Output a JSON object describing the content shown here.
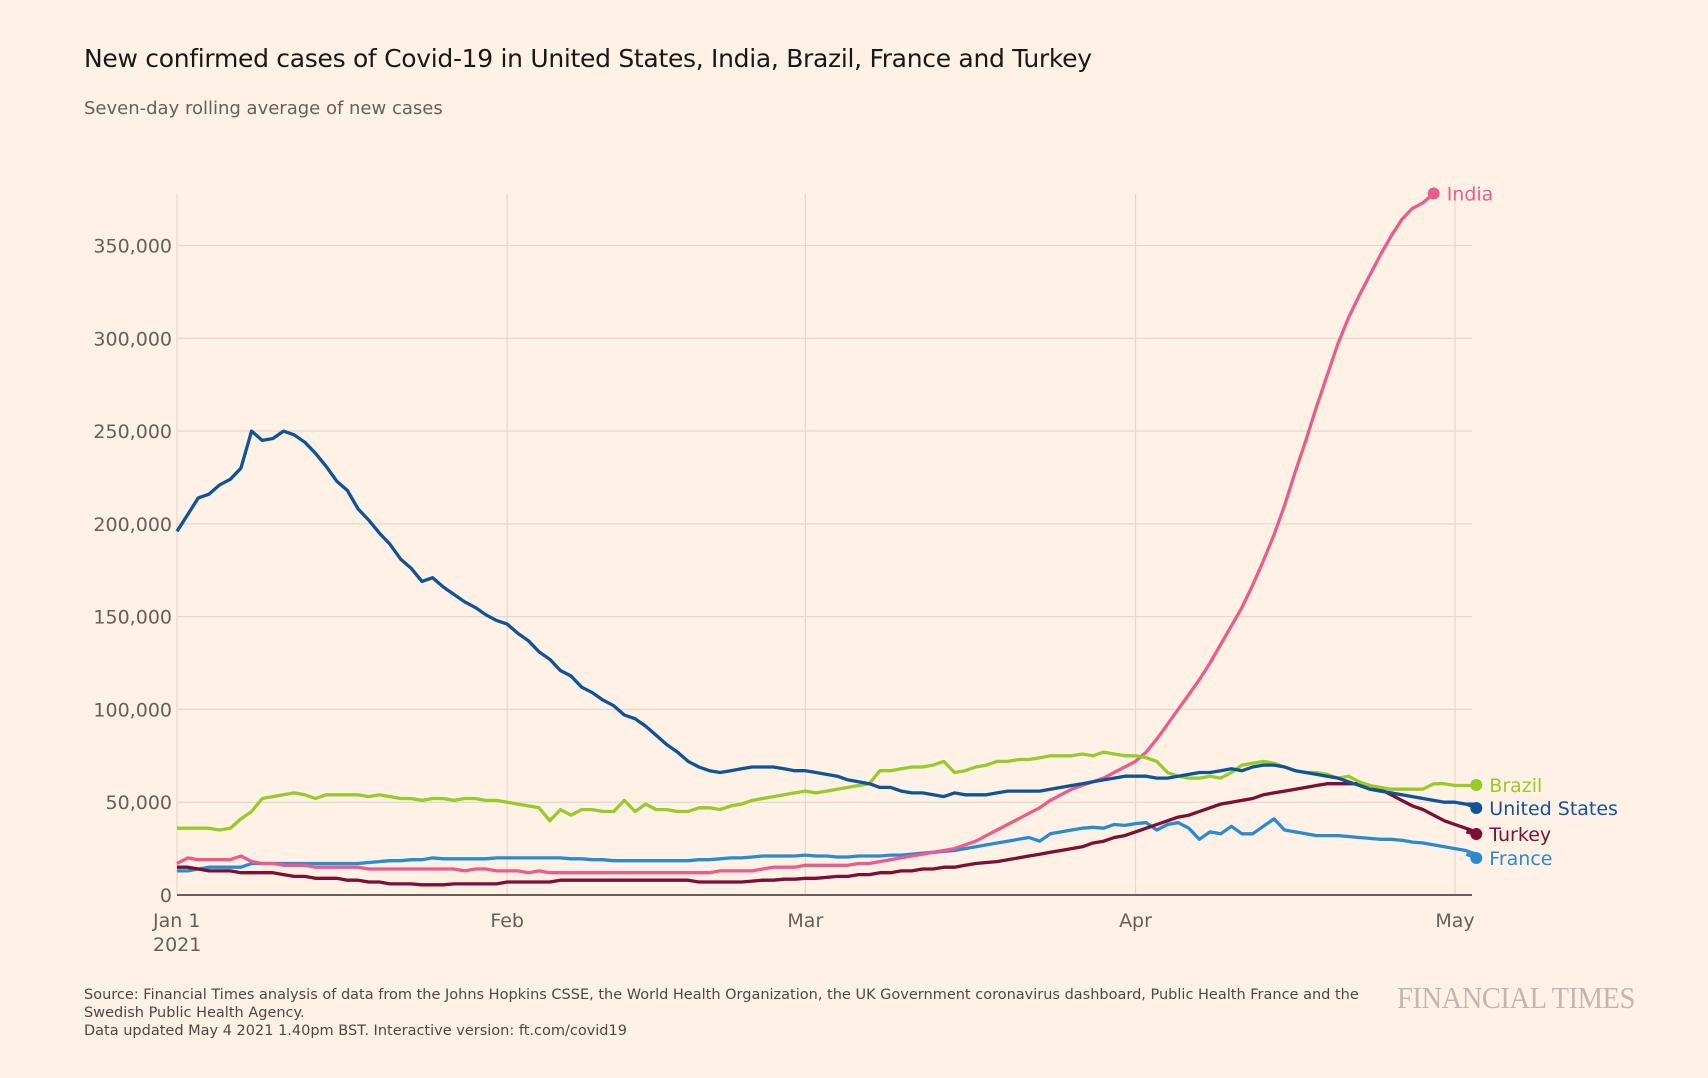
{
  "header": {
    "title": "New confirmed cases of Covid-19 in United States, India, Brazil, France and Turkey",
    "subtitle": "Seven-day rolling average of new cases"
  },
  "footer": {
    "source_line1": "Source: Financial Times analysis of data from the Johns Hopkins CSSE, the World Health Organization, the UK Government coronavirus dashboard, Public Health France and the",
    "source_line2": "Swedish Public Health Agency.",
    "updated": "Data updated May 4 2021 1.40pm BST. Interactive version: ft.com/covid19",
    "logo": "FINANCIAL TIMES"
  },
  "chart_data": {
    "type": "line",
    "title": "New confirmed cases of Covid-19 in United States, India, Brazil, France and Turkey",
    "subtitle": "Seven-day rolling average of new cases",
    "xlabel": "",
    "ylabel": "",
    "x_start": "2021-01-01",
    "x_unit": "days since Jan 1 2021",
    "xlim": [
      0,
      122
    ],
    "ylim": [
      0,
      375000
    ],
    "grid": true,
    "legend": "right (labels at line ends)",
    "x_ticks": [
      {
        "day": 0,
        "label": "Jan 1",
        "sublabel": "2021"
      },
      {
        "day": 31,
        "label": "Feb",
        "sublabel": ""
      },
      {
        "day": 59,
        "label": "Mar",
        "sublabel": ""
      },
      {
        "day": 90,
        "label": "Apr",
        "sublabel": ""
      },
      {
        "day": 120,
        "label": "May",
        "sublabel": ""
      }
    ],
    "y_ticks": [
      {
        "value": 0,
        "label": "0"
      },
      {
        "value": 50000,
        "label": "50,000"
      },
      {
        "value": 100000,
        "label": "100,000"
      },
      {
        "value": 150000,
        "label": "150,000"
      },
      {
        "value": 200000,
        "label": "200,000"
      },
      {
        "value": 250000,
        "label": "250,000"
      },
      {
        "value": 300000,
        "label": "300,000"
      },
      {
        "value": 350000,
        "label": "350,000"
      }
    ],
    "series": [
      {
        "name": "United States",
        "color": "#0f5499",
        "values": [
          196000,
          205000,
          214000,
          216000,
          221000,
          224000,
          230000,
          250000,
          245000,
          246000,
          250000,
          248000,
          244000,
          238000,
          231000,
          223000,
          218000,
          208000,
          202000,
          195000,
          189000,
          181000,
          176000,
          169000,
          171000,
          166000,
          162000,
          158000,
          155000,
          151000,
          148000,
          146000,
          141000,
          137000,
          131000,
          127000,
          121000,
          118000,
          112000,
          109000,
          105000,
          102000,
          97000,
          95000,
          91000,
          86000,
          81000,
          77000,
          72000,
          69000,
          67000,
          66000,
          67000,
          68000,
          69000,
          69000,
          69000,
          68000,
          67000,
          67000,
          66000,
          65000,
          64000,
          62000,
          61000,
          60000,
          58000,
          58000,
          56000,
          55000,
          55000,
          54000,
          53000,
          55000,
          54000,
          54000,
          54000,
          55000,
          56000,
          56000,
          56000,
          56000,
          57000,
          58000,
          59000,
          60000,
          61000,
          62000,
          63000,
          64000,
          64000,
          64000,
          63000,
          63000,
          64000,
          65000,
          66000,
          66000,
          67000,
          68000,
          67000,
          69000,
          70000,
          70000,
          69000,
          67000,
          66000,
          65000,
          64000,
          63000,
          61000,
          59000,
          57000,
          56000,
          55000,
          54000,
          53000,
          52000,
          51000,
          50000,
          50000,
          49000,
          49000
        ]
      },
      {
        "name": "India",
        "color": "#e95d8c",
        "values": [
          17000,
          20000,
          19000,
          19000,
          19000,
          19000,
          21000,
          18000,
          17000,
          17000,
          16000,
          16000,
          16000,
          15000,
          15000,
          15000,
          15000,
          15000,
          14000,
          14000,
          14000,
          14000,
          14000,
          14000,
          14000,
          14000,
          14000,
          13000,
          14000,
          14000,
          13000,
          13000,
          13000,
          12000,
          13000,
          12000,
          12000,
          12000,
          12000,
          12000,
          12000,
          12000,
          12000,
          12000,
          12000,
          12000,
          12000,
          12000,
          12000,
          12000,
          12000,
          13000,
          13000,
          13000,
          13000,
          14000,
          15000,
          15000,
          15000,
          16000,
          16000,
          16000,
          16000,
          16000,
          17000,
          17000,
          18000,
          19000,
          20000,
          21000,
          22000,
          23000,
          24000,
          25000,
          27000,
          29000,
          32000,
          35000,
          38000,
          41000,
          44000,
          47000,
          51000,
          54000,
          57000,
          59000,
          61000,
          63000,
          66000,
          69000,
          72000,
          77000,
          84000,
          92000,
          100000,
          108000,
          116000,
          125000,
          135000,
          145000,
          155000,
          167000,
          180000,
          194000,
          210000,
          228000,
          245000,
          263000,
          280000,
          297000,
          311000,
          323000,
          334000,
          345000,
          355000,
          364000,
          370000,
          373000,
          378000
        ]
      },
      {
        "name": "Brazil",
        "color": "#96cc28",
        "values": [
          36000,
          36000,
          36000,
          36000,
          35000,
          36000,
          41000,
          45000,
          52000,
          53000,
          54000,
          55000,
          54000,
          52000,
          54000,
          54000,
          54000,
          54000,
          53000,
          54000,
          53000,
          52000,
          52000,
          51000,
          52000,
          52000,
          51000,
          52000,
          52000,
          51000,
          51000,
          50000,
          49000,
          48000,
          47000,
          40000,
          46000,
          43000,
          46000,
          46000,
          45000,
          45000,
          51000,
          45000,
          49000,
          46000,
          46000,
          45000,
          45000,
          47000,
          47000,
          46000,
          48000,
          49000,
          51000,
          52000,
          53000,
          54000,
          55000,
          56000,
          55000,
          56000,
          57000,
          58000,
          59000,
          60000,
          67000,
          67000,
          68000,
          69000,
          69000,
          70000,
          72000,
          66000,
          67000,
          69000,
          70000,
          72000,
          72000,
          73000,
          73000,
          74000,
          75000,
          75000,
          75000,
          76000,
          75000,
          77000,
          76000,
          75000,
          75000,
          74000,
          72000,
          66000,
          64000,
          63000,
          63000,
          64000,
          63000,
          66000,
          70000,
          71000,
          72000,
          71000,
          69000,
          67000,
          66000,
          66000,
          65000,
          63000,
          64000,
          61000,
          59000,
          58000,
          57000,
          57000,
          57000,
          57000,
          60000,
          60000,
          59000,
          59000,
          59000
        ]
      },
      {
        "name": "Turkey",
        "color": "#7d0e34",
        "values": [
          15000,
          15000,
          14000,
          13000,
          13000,
          13000,
          12000,
          12000,
          12000,
          12000,
          11000,
          10000,
          10000,
          9000,
          9000,
          9000,
          8000,
          8000,
          7000,
          7000,
          6000,
          6000,
          6000,
          5500,
          5500,
          5500,
          6000,
          6000,
          6000,
          6000,
          6000,
          7000,
          7000,
          7000,
          7000,
          7000,
          8000,
          8000,
          8000,
          8000,
          8000,
          8000,
          8000,
          8000,
          8000,
          8000,
          8000,
          8000,
          8000,
          7000,
          7000,
          7000,
          7000,
          7000,
          7500,
          8000,
          8000,
          8500,
          8500,
          9000,
          9000,
          9500,
          10000,
          10000,
          11000,
          11000,
          12000,
          12000,
          13000,
          13000,
          14000,
          14000,
          15000,
          15000,
          16000,
          17000,
          17500,
          18000,
          19000,
          20000,
          21000,
          22000,
          23000,
          24000,
          25000,
          26000,
          28000,
          29000,
          31000,
          32000,
          34000,
          36000,
          38000,
          40000,
          42000,
          43000,
          45000,
          47000,
          49000,
          50000,
          51000,
          52000,
          54000,
          55000,
          56000,
          57000,
          58000,
          59000,
          60000,
          60000,
          60000,
          60000,
          59000,
          57000,
          54000,
          51000,
          48000,
          46000,
          43000,
          40000,
          38000,
          36000,
          34000
        ]
      },
      {
        "name": "France",
        "color": "#298bd0",
        "values": [
          13000,
          13000,
          14000,
          15000,
          15000,
          15000,
          15000,
          17000,
          17000,
          17000,
          17000,
          17000,
          17000,
          17000,
          17000,
          17000,
          17000,
          17000,
          17500,
          18000,
          18500,
          18500,
          19000,
          19000,
          20000,
          19500,
          19500,
          19500,
          19500,
          19500,
          20000,
          20000,
          20000,
          20000,
          20000,
          20000,
          20000,
          19500,
          19500,
          19000,
          19000,
          18500,
          18500,
          18500,
          18500,
          18500,
          18500,
          18500,
          18500,
          19000,
          19000,
          19500,
          20000,
          20000,
          20500,
          21000,
          21000,
          21000,
          21000,
          21500,
          21000,
          21000,
          20500,
          20500,
          21000,
          21000,
          21000,
          21500,
          21500,
          22000,
          22500,
          23000,
          23500,
          24000,
          25000,
          26000,
          27000,
          28000,
          29000,
          30000,
          31000,
          29000,
          33000,
          34000,
          35000,
          36000,
          36500,
          36000,
          38000,
          37500,
          38500,
          39000,
          35000,
          38000,
          39000,
          36000,
          30000,
          34000,
          33000,
          37000,
          33000,
          33000,
          37000,
          41000,
          35000,
          34000,
          33000,
          32000,
          32000,
          32000,
          31500,
          31000,
          30500,
          30000,
          30000,
          29500,
          28500,
          28000,
          27000,
          26000,
          25000,
          24000,
          22000
        ]
      }
    ]
  }
}
